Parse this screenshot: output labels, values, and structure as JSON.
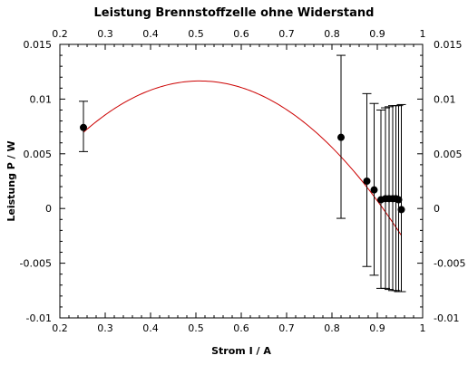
{
  "chart_data": {
    "type": "scatter",
    "title": "Leistung Brennstoffzelle ohne Widerstand",
    "xlabel": "Strom I / A",
    "ylabel": "Leistung P / W",
    "xlim": [
      0.2,
      1.0
    ],
    "ylim": [
      -0.01,
      0.015
    ],
    "x_ticks": [
      0.2,
      0.3,
      0.4,
      0.5,
      0.6,
      0.7,
      0.8,
      0.9,
      1.0
    ],
    "x_tick_labels": [
      "0.2",
      "0.3",
      "0.4",
      "0.5",
      "0.6",
      "0.7",
      "0.8",
      "0.9",
      "1"
    ],
    "y_ticks": [
      -0.01,
      -0.005,
      0,
      0.005,
      0.01,
      0.015
    ],
    "y_tick_labels": [
      "-0.01",
      "-0.005",
      "0",
      "0.005",
      "0.01",
      "0.015"
    ],
    "grid": false,
    "series": [
      {
        "marker_color": "#000000",
        "points": [
          {
            "x": 0.252,
            "y": 0.0074,
            "err_low": 0.0052,
            "err_high": 0.0098
          },
          {
            "x": 0.82,
            "y": 0.0065,
            "err_low": -0.0009,
            "err_high": 0.014
          },
          {
            "x": 0.877,
            "y": 0.0025,
            "err_low": -0.0053,
            "err_high": 0.0105
          },
          {
            "x": 0.893,
            "y": 0.0017,
            "err_low": -0.0061,
            "err_high": 0.0096
          },
          {
            "x": 0.908,
            "y": 0.0008,
            "err_low": -0.0073,
            "err_high": 0.009
          },
          {
            "x": 0.918,
            "y": 0.0009,
            "err_low": -0.0073,
            "err_high": 0.0092
          },
          {
            "x": 0.926,
            "y": 0.0009,
            "err_low": -0.0074,
            "err_high": 0.0093
          },
          {
            "x": 0.934,
            "y": 0.0009,
            "err_low": -0.0075,
            "err_high": 0.0094
          },
          {
            "x": 0.941,
            "y": 0.0009,
            "err_low": -0.0075,
            "err_high": 0.0094
          },
          {
            "x": 0.947,
            "y": 0.0008,
            "err_low": -0.0076,
            "err_high": 0.0094
          },
          {
            "x": 0.953,
            "y": -0.0001,
            "err_low": -0.0076,
            "err_high": 0.0095
          }
        ]
      }
    ],
    "fit_curve": {
      "color": "#cc0000",
      "model": "quadratic",
      "coefficients": [
        -0.0068,
        0.0726,
        -0.0714
      ],
      "x_range": [
        0.252,
        0.953
      ]
    }
  }
}
